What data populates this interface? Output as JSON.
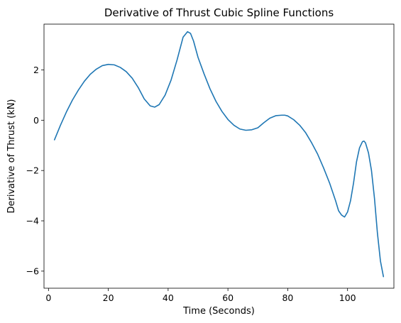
{
  "chart_data": {
    "type": "line",
    "title": "Derivative of Thrust Cubic Spline Functions",
    "xlabel": "Time (Seconds)",
    "ylabel": "Derivative of Thrust (kN)",
    "xlim": [
      -1.5,
      115.5
    ],
    "ylim": [
      -6.68,
      3.82
    ],
    "x_ticks": [
      0,
      20,
      40,
      60,
      80,
      100
    ],
    "x_tick_labels": [
      "0",
      "20",
      "40",
      "60",
      "80",
      "100"
    ],
    "y_ticks": [
      -6,
      -4,
      -2,
      0,
      2
    ],
    "y_tick_labels": [
      "−6",
      "−4",
      "−2",
      "0",
      "2"
    ],
    "grid": false,
    "colors": {
      "series": "#1f77b4",
      "axes": "#000000",
      "background": "#ffffff"
    },
    "series": [
      {
        "x": [
          2,
          4,
          6,
          8,
          10,
          12,
          14,
          16,
          18,
          20,
          22,
          24,
          26,
          28,
          30,
          32,
          34,
          35.5,
          37,
          39,
          41,
          43,
          45,
          46.5,
          47.5,
          48.5,
          50,
          52,
          54,
          56,
          58,
          60,
          62,
          64,
          66,
          68,
          70,
          72,
          74,
          76,
          78,
          79,
          80,
          82,
          84,
          86,
          88,
          90,
          92,
          94,
          96,
          97,
          98,
          99,
          100,
          101,
          102,
          103,
          104,
          105,
          105.5,
          106,
          107,
          108,
          109,
          110,
          111,
          112
        ],
        "y": [
          -0.78,
          -0.2,
          0.33,
          0.8,
          1.2,
          1.55,
          1.83,
          2.03,
          2.17,
          2.22,
          2.2,
          2.1,
          1.93,
          1.67,
          1.3,
          0.85,
          0.57,
          0.52,
          0.62,
          1.0,
          1.6,
          2.4,
          3.3,
          3.52,
          3.45,
          3.15,
          2.5,
          1.85,
          1.25,
          0.75,
          0.35,
          0.03,
          -0.2,
          -0.35,
          -0.4,
          -0.38,
          -0.3,
          -0.1,
          0.08,
          0.18,
          0.2,
          0.2,
          0.17,
          0.02,
          -0.2,
          -0.5,
          -0.9,
          -1.35,
          -1.9,
          -2.5,
          -3.2,
          -3.6,
          -3.77,
          -3.85,
          -3.65,
          -3.2,
          -2.5,
          -1.65,
          -1.1,
          -0.85,
          -0.83,
          -0.9,
          -1.3,
          -2.0,
          -3.1,
          -4.5,
          -5.6,
          -6.22
        ]
      }
    ]
  }
}
